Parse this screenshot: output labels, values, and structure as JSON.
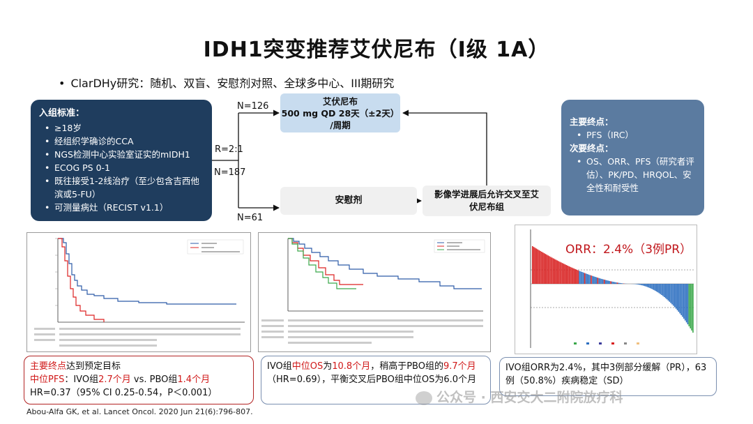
{
  "title": "IDH1突变推荐艾伏尼布（Ⅰ级 1A）",
  "subtitle": "ClarDHy研究：随机、双盲、安慰剂对照、全球多中心、III期研究",
  "criteria": {
    "head": "入组标准：",
    "items": [
      "≥18岁",
      "经组织学确诊的CCA",
      "NGS检测中心实验室证实的mIDH1",
      "ECOG PS 0-1",
      "既往接受1-2线治疗（至少包含吉西他滨或5-FU）",
      "可测量病灶（RECIST v1.1）"
    ]
  },
  "flow": {
    "n_total": "N=187",
    "ratio": "R=2:1",
    "n_drug": "N=126",
    "n_placebo": "N=61",
    "drug_line1": "艾伏尼布",
    "drug_line2": "500 mg QD 28天（±2天）",
    "drug_line3": "/周期",
    "placebo": "安慰剂",
    "cross_line1": "影像学进展后允许交叉至艾",
    "cross_line2": "伏尼布组"
  },
  "endpoints": {
    "primary_head": "主要终点：",
    "primary_items": [
      "PFS（IRC）"
    ],
    "secondary_head": "次要终点：",
    "secondary_items": [
      "OS、ORR、PFS（研究者评估）、PK/PD、HRQOL、安全性和耐受性"
    ]
  },
  "orr_label": "ORR：2.4%（3例PR）",
  "results": {
    "pfs_l1a": "主要终点",
    "pfs_l1b": "达到预定目标",
    "pfs_l2a": "中位PFS",
    "pfs_l2b": "：IVO组",
    "pfs_l2c": "2.7个月",
    "pfs_l2d": " vs. PBO组",
    "pfs_l2e": "1.4个月",
    "pfs_l3": "HR=0.37（95% CI 0.25-0.54，P＜0.001）",
    "os_a": "IVO组",
    "os_b": "中位OS",
    "os_c": "为",
    "os_d": "10.8个月",
    "os_e": "，稍高于PBO组的",
    "os_f": "9.7个月",
    "os_g": "（HR=0.69），平衡交叉后PBO组中位OS为6.0个月",
    "orr_text": "IVO组ORR为2.4%，其中3例部分缓解（PR），63例（50.8%）疾病稳定（SD）"
  },
  "citation": "Abou-Alfa GK, et al. Lancet Oncol. 2020 Jun 21(6):796-807.",
  "watermark": "公众号 · 西安交大二附院放疗科",
  "colors": {
    "criteria_bg": "#1f3d5e",
    "endpoint_bg": "#5b7ba0",
    "drug_box": "#c8dcef",
    "highlight_red": "#d01818"
  }
}
